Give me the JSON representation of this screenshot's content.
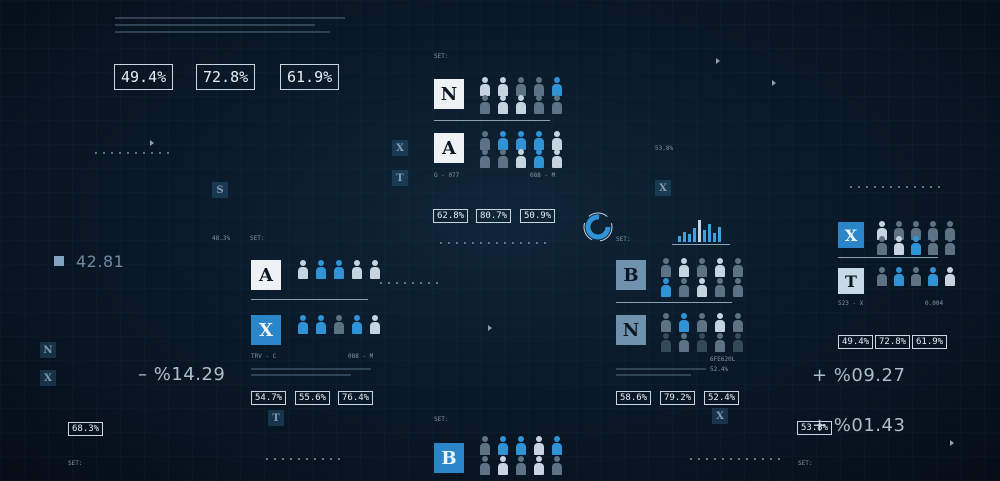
{
  "top_left_stats": [
    "49.4%",
    "72.8%",
    "61.9%"
  ],
  "left_panel": {
    "letters": [
      "A",
      "X"
    ],
    "footer_left": "TRV - C",
    "footer_right": "088 - M",
    "stats": [
      "54.7%",
      "55.6%",
      "76.4%"
    ],
    "set_label": "SET:",
    "set_value": "48.3%",
    "ghost_letter": "S"
  },
  "center_panel": {
    "set_label": "SET:",
    "letters": [
      "N",
      "A"
    ],
    "footer_left": "G - 077",
    "footer_right": "088 - M",
    "stats": [
      "62.8%",
      "80.7%",
      "50.9%"
    ],
    "ghost_letters": [
      "X",
      "T"
    ]
  },
  "center_bottom_panel": {
    "set_label": "SET:",
    "letter": "B"
  },
  "right_center_panel": {
    "letters": [
      "B",
      "N"
    ],
    "set_label": "SET:",
    "stats": [
      "58.6%",
      "79.2%",
      "52.4%"
    ],
    "ghost_letter": "X",
    "code": "6FE620L",
    "extra": "52.4%",
    "small_pct": "53.8%"
  },
  "right_panel": {
    "letters": [
      "X",
      "T"
    ],
    "footer_left": "523 - X",
    "footer_right": "0.004",
    "stats": [
      "49.4%",
      "72.8%",
      "61.9%"
    ]
  },
  "big_numbers": {
    "left_readout": "42.81",
    "left_delta": "– %14.29",
    "right_delta_1": "+ %09.27",
    "right_delta_2": "+ %01.43",
    "right_box": "53.8%",
    "left_box": "68.3%"
  },
  "misc_labels": {
    "set_bottom_left": "SET:",
    "set_bottom_right": "SET:",
    "set_center_left": "SET:"
  },
  "chart_colors": {
    "accent": "#2f93d6",
    "white": "#c5d4e0",
    "gray": "#5d7385"
  }
}
